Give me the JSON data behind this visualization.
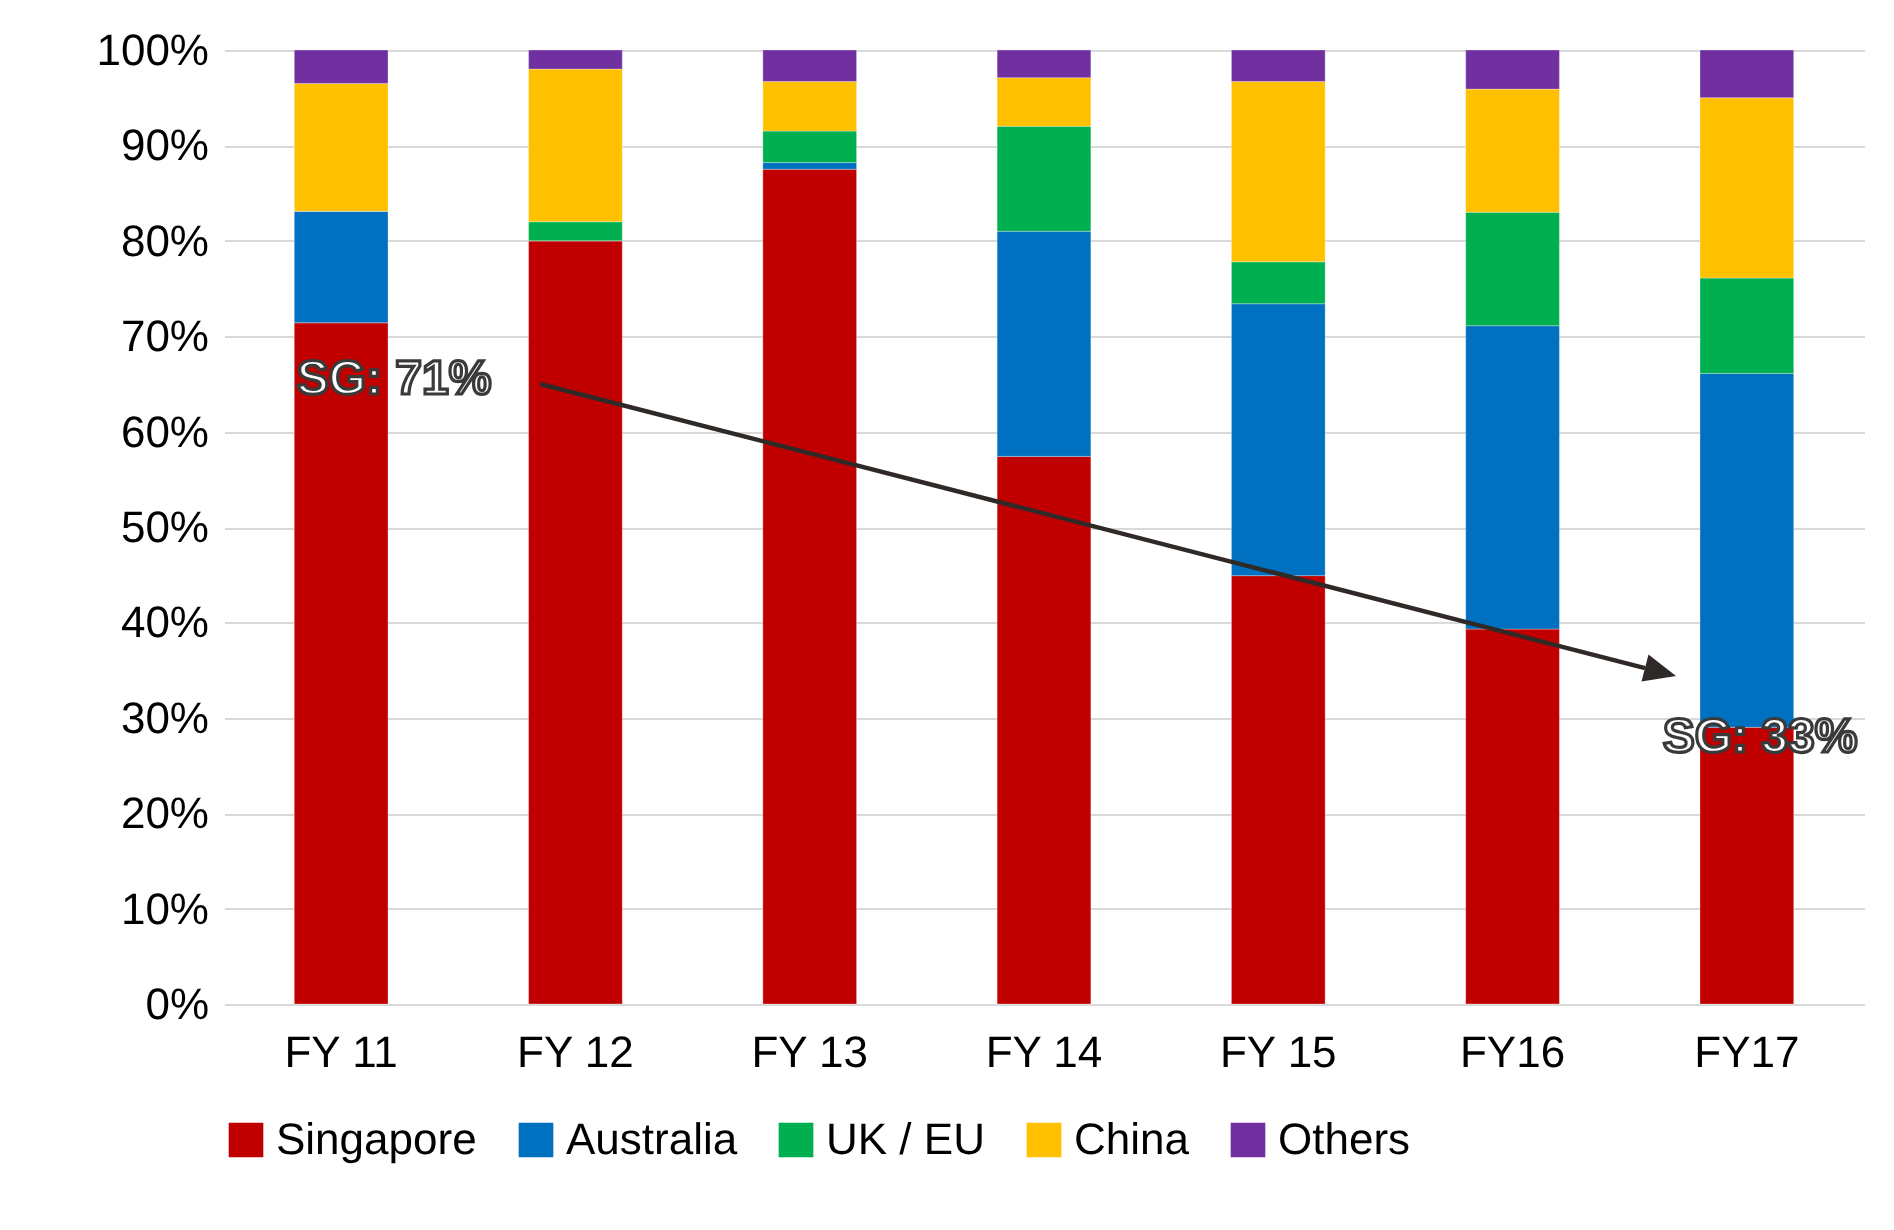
{
  "chart_data": {
    "type": "bar",
    "stacked": true,
    "categories": [
      "FY 11",
      "FY 12",
      "FY 13",
      "FY 14",
      "FY 15",
      "FY16",
      "FY17"
    ],
    "series": [
      {
        "name": "Singapore",
        "color": "#c00000",
        "values": [
          71.4,
          80,
          87.5,
          57.4,
          44.9,
          39.3,
          29
        ]
      },
      {
        "name": "Australia",
        "color": "#0070c0",
        "values": [
          11.7,
          0,
          0.7,
          23.6,
          28.5,
          31.8,
          37.1
        ]
      },
      {
        "name": "UK / EU",
        "color": "#00b050",
        "values": [
          0,
          2,
          3.3,
          11,
          4.4,
          11.9,
          10
        ]
      },
      {
        "name": "China",
        "color": "#ffc000",
        "values": [
          13.4,
          16,
          5.2,
          5.1,
          18.9,
          12.9,
          18.9
        ]
      },
      {
        "name": "Others",
        "color": "#7030a0",
        "values": [
          3.5,
          2,
          3.3,
          2.9,
          3.3,
          4.1,
          5
        ]
      }
    ],
    "ylim": [
      0,
      100
    ],
    "yticks": [
      {
        "value": 0,
        "label": "0%"
      },
      {
        "value": 10,
        "label": "10%"
      },
      {
        "value": 20,
        "label": "20%"
      },
      {
        "value": 30,
        "label": "30%"
      },
      {
        "value": 40,
        "label": "40%"
      },
      {
        "value": 50,
        "label": "50%"
      },
      {
        "value": 60,
        "label": "60%"
      },
      {
        "value": 70,
        "label": "70%"
      },
      {
        "value": 80,
        "label": "80%"
      },
      {
        "value": 90,
        "label": "90%"
      },
      {
        "value": 100,
        "label": "100%"
      }
    ],
    "grid": "y",
    "legend": "bottom",
    "annotations": [
      "SG: 71%",
      "SG: 33%"
    ]
  }
}
